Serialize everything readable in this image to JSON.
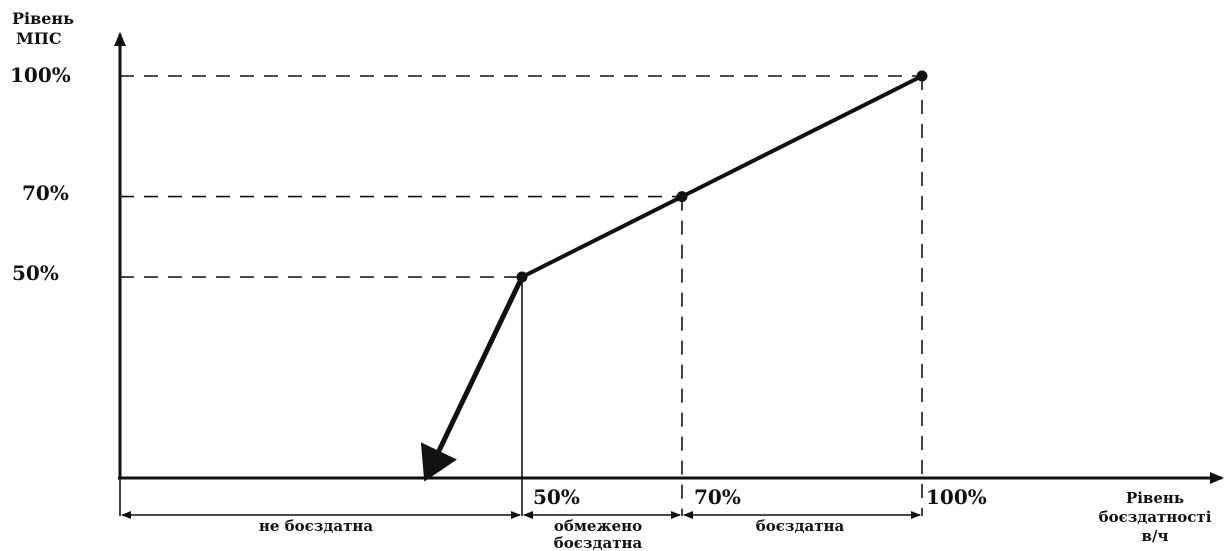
{
  "chart_data": {
    "type": "line",
    "title": "",
    "ylabel_lines": [
      "Рівень",
      "МПС"
    ],
    "xlabel_lines": [
      "Рівень",
      "боєздатності",
      "в/ч"
    ],
    "y_ticks": [
      "100%",
      "70%",
      "50%"
    ],
    "x_ticks": [
      "50%",
      "70%",
      "100%"
    ],
    "x": [
      50,
      70,
      100
    ],
    "y": [
      50,
      70,
      100
    ],
    "xlim": [
      0,
      100
    ],
    "ylim": [
      0,
      100
    ],
    "arrow": {
      "from": [
        50,
        50
      ],
      "to": [
        38,
        0
      ]
    },
    "zones": [
      {
        "label_lines": [
          "не боєздатна"
        ],
        "from": 0,
        "to": 50
      },
      {
        "label_lines": [
          "обмежено",
          "боєздатна"
        ],
        "from": 50,
        "to": 70
      },
      {
        "label_lines": [
          "боєздатна"
        ],
        "from": 70,
        "to": 100
      }
    ],
    "grid": false,
    "line_color": "#111111",
    "guide_style": "dashed"
  }
}
